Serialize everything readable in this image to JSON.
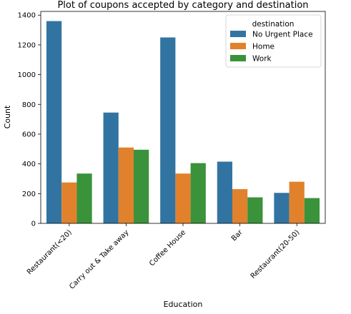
{
  "chart_data": {
    "type": "bar",
    "title": "Plot of coupons accepted by category and destination",
    "xlabel": "Education",
    "ylabel": "Count",
    "categories": [
      "Restaurant(<20)",
      "Carry out & Take away",
      "Coffee House",
      "Bar",
      "Restaurant(20-50)"
    ],
    "series": [
      {
        "name": "No Urgent Place",
        "color": "#3274a1",
        "values": [
          1360,
          745,
          1250,
          415,
          205
        ]
      },
      {
        "name": "Home",
        "color": "#e1812c",
        "values": [
          275,
          510,
          335,
          230,
          280
        ]
      },
      {
        "name": "Work",
        "color": "#3a923a",
        "values": [
          335,
          495,
          405,
          175,
          170
        ]
      }
    ],
    "ylim": [
      0,
      1425
    ],
    "yticks": [
      0,
      200,
      400,
      600,
      800,
      1000,
      1200,
      1400
    ],
    "legend": {
      "title": "destination",
      "placement": "top-right"
    },
    "grid": false
  }
}
